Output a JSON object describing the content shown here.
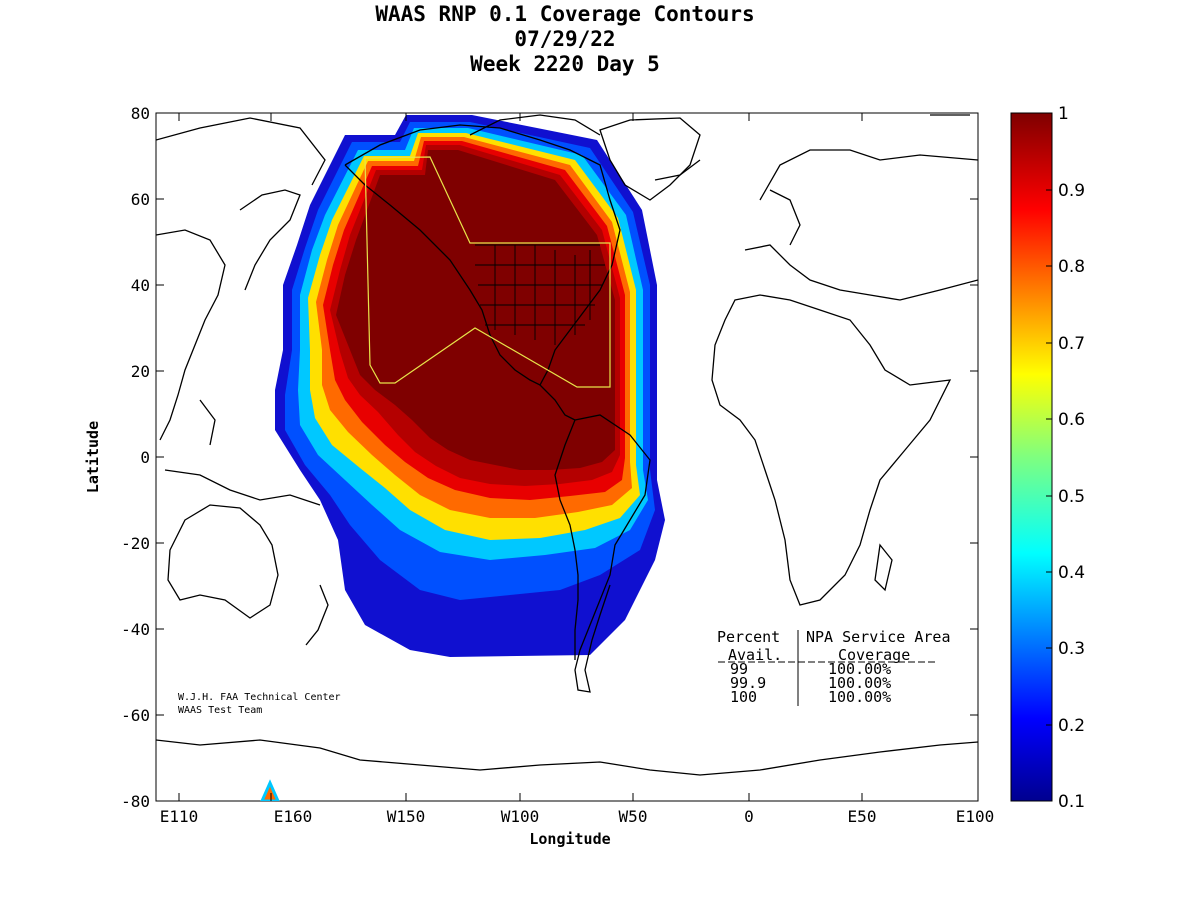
{
  "title": {
    "line1": "WAAS RNP 0.1 Coverage Contours",
    "line2": "07/29/22",
    "line3": "Week 2220 Day 5"
  },
  "axes": {
    "xlabel": "Longitude",
    "ylabel": "Latitude",
    "x_ticks": [
      "E110",
      "E160",
      "W150",
      "W100",
      "W50",
      "0",
      "E50",
      "E100"
    ],
    "y_ticks": [
      "80",
      "60",
      "40",
      "20",
      "0",
      "-20",
      "-40",
      "-60",
      "-80"
    ]
  },
  "colorbar": {
    "ticks": [
      "1",
      "0.9",
      "0.8",
      "0.7",
      "0.6",
      "0.5",
      "0.4",
      "0.3",
      "0.2",
      "0.1"
    ],
    "range": [
      0.1,
      1
    ]
  },
  "credit": {
    "line1": "W.J.H. FAA Technical Center",
    "line2": "WAAS Test Team"
  },
  "coverage_table": {
    "header1_left": "Percent",
    "header1_right": "NPA Service Area",
    "header2_left": "Avail.",
    "header2_right": "Coverage",
    "rows": [
      {
        "avail": "99",
        "coverage": "100.00%"
      },
      {
        "avail": "99.9",
        "coverage": "100.00%"
      },
      {
        "avail": "100",
        "coverage": "100.00%"
      }
    ]
  },
  "colors": {
    "service_area_outline": "#e8e44a",
    "coverage_high": "#7f0000",
    "coverage_low": "#00008f"
  }
}
